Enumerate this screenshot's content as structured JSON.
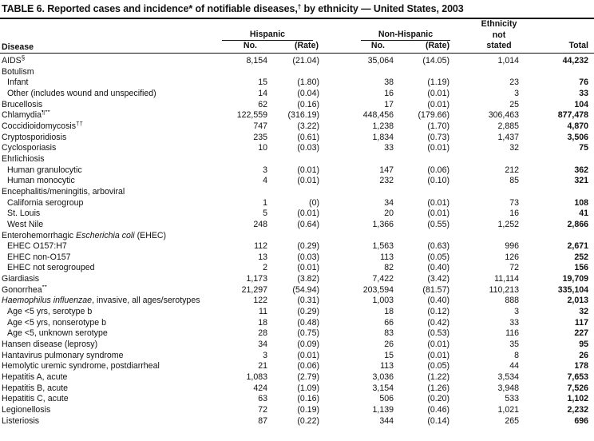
{
  "title": {
    "parts": [
      {
        "t": "TABLE 6. Reported cases and incidence* of notifiable diseases,"
      },
      {
        "t": "†",
        "sup": true
      },
      {
        "t": " by ethnicity — United States, 2003"
      }
    ]
  },
  "table": {
    "header": {
      "disease": "Disease",
      "hispanic": "Hispanic",
      "non_hispanic": "Non-Hispanic",
      "no": "No.",
      "rate": "(Rate)",
      "ethnicity_line1": "Ethnicity",
      "ethnicity_line2": "not",
      "ethnicity_line3": "stated",
      "total": "Total"
    },
    "rows": [
      {
        "label": [
          {
            "t": "AIDS"
          },
          {
            "t": "§",
            "sup": true
          }
        ],
        "indent": false,
        "c": [
          "8,154",
          "(21.04)",
          "35,064",
          "(14.05)",
          "1,014",
          "44,232"
        ]
      },
      {
        "label": [
          {
            "t": "Botulism"
          }
        ],
        "indent": false,
        "c": []
      },
      {
        "label": [
          {
            "t": "Infant"
          }
        ],
        "indent": true,
        "c": [
          "15",
          "(1.80)",
          "38",
          "(1.19)",
          "23",
          "76"
        ]
      },
      {
        "label": [
          {
            "t": "Other (includes wound and unspecified)"
          }
        ],
        "indent": true,
        "c": [
          "14",
          "(0.04)",
          "16",
          "(0.01)",
          "3",
          "33"
        ]
      },
      {
        "label": [
          {
            "t": "Brucellosis"
          }
        ],
        "indent": false,
        "c": [
          "62",
          "(0.16)",
          "17",
          "(0.01)",
          "25",
          "104"
        ]
      },
      {
        "label": [
          {
            "t": "Chlamydia"
          },
          {
            "t": "¶**",
            "sup": true
          }
        ],
        "indent": false,
        "c": [
          "122,559",
          "(316.19)",
          "448,456",
          "(179.66)",
          "306,463",
          "877,478"
        ]
      },
      {
        "label": [
          {
            "t": "Coccidioidomycosis"
          },
          {
            "t": "††",
            "sup": true
          }
        ],
        "indent": false,
        "c": [
          "747",
          "(3.22)",
          "1,238",
          "(1.70)",
          "2,885",
          "4,870"
        ]
      },
      {
        "label": [
          {
            "t": "Cryptosporidiosis"
          }
        ],
        "indent": false,
        "c": [
          "235",
          "(0.61)",
          "1,834",
          "(0.73)",
          "1,437",
          "3,506"
        ]
      },
      {
        "label": [
          {
            "t": "Cyclosporiasis"
          }
        ],
        "indent": false,
        "c": [
          "10",
          "(0.03)",
          "33",
          "(0.01)",
          "32",
          "75"
        ]
      },
      {
        "label": [
          {
            "t": "Ehrlichiosis"
          }
        ],
        "indent": false,
        "c": []
      },
      {
        "label": [
          {
            "t": "Human granulocytic"
          }
        ],
        "indent": true,
        "c": [
          "3",
          "(0.01)",
          "147",
          "(0.06)",
          "212",
          "362"
        ]
      },
      {
        "label": [
          {
            "t": "Human monocytic"
          }
        ],
        "indent": true,
        "c": [
          "4",
          "(0.01)",
          "232",
          "(0.10)",
          "85",
          "321"
        ]
      },
      {
        "label": [
          {
            "t": "Encephalitis/meningitis, arboviral"
          }
        ],
        "indent": false,
        "c": []
      },
      {
        "label": [
          {
            "t": "California serogroup"
          }
        ],
        "indent": true,
        "c": [
          "1",
          "(0)",
          "34",
          "(0.01)",
          "73",
          "108"
        ]
      },
      {
        "label": [
          {
            "t": "St. Louis"
          }
        ],
        "indent": true,
        "c": [
          "5",
          "(0.01)",
          "20",
          "(0.01)",
          "16",
          "41"
        ]
      },
      {
        "label": [
          {
            "t": "West Nile"
          }
        ],
        "indent": true,
        "c": [
          "248",
          "(0.64)",
          "1,366",
          "(0.55)",
          "1,252",
          "2,866"
        ]
      },
      {
        "label": [
          {
            "t": "Enterohemorrhagic "
          },
          {
            "t": "Escherichia coli",
            "it": true
          },
          {
            "t": " (EHEC)"
          }
        ],
        "indent": false,
        "c": []
      },
      {
        "label": [
          {
            "t": "EHEC O157:H7"
          }
        ],
        "indent": true,
        "c": [
          "112",
          "(0.29)",
          "1,563",
          "(0.63)",
          "996",
          "2,671"
        ]
      },
      {
        "label": [
          {
            "t": "EHEC non-O157"
          }
        ],
        "indent": true,
        "c": [
          "13",
          "(0.03)",
          "113",
          "(0.05)",
          "126",
          "252"
        ]
      },
      {
        "label": [
          {
            "t": "EHEC not serogrouped"
          }
        ],
        "indent": true,
        "c": [
          "2",
          "(0.01)",
          "82",
          "(0.40)",
          "72",
          "156"
        ]
      },
      {
        "label": [
          {
            "t": "Giardiasis"
          }
        ],
        "indent": false,
        "c": [
          "1,173",
          "(3.82)",
          "7,422",
          "(3.42)",
          "11,114",
          "19,709"
        ]
      },
      {
        "label": [
          {
            "t": "Gonorrhea"
          },
          {
            "t": "**",
            "sup": true
          }
        ],
        "indent": false,
        "c": [
          "21,297",
          "(54.94)",
          "203,594",
          "(81.57)",
          "110,213",
          "335,104"
        ]
      },
      {
        "label": [
          {
            "t": "Haemophilus influenzae",
            "it": true
          },
          {
            "t": ", invasive, all ages/serotypes"
          }
        ],
        "indent": false,
        "c": [
          "122",
          "(0.31)",
          "1,003",
          "(0.40)",
          "888",
          "2,013"
        ]
      },
      {
        "label": [
          {
            "t": "Age <5 yrs, serotype b"
          }
        ],
        "indent": true,
        "c": [
          "11",
          "(0.29)",
          "18",
          "(0.12)",
          "3",
          "32"
        ]
      },
      {
        "label": [
          {
            "t": "Age <5 yrs, nonserotype b"
          }
        ],
        "indent": true,
        "c": [
          "18",
          "(0.48)",
          "66",
          "(0.42)",
          "33",
          "117"
        ]
      },
      {
        "label": [
          {
            "t": "Age <5, unknown serotype"
          }
        ],
        "indent": true,
        "c": [
          "28",
          "(0.75)",
          "83",
          "(0.53)",
          "116",
          "227"
        ]
      },
      {
        "label": [
          {
            "t": "Hansen disease (leprosy)"
          }
        ],
        "indent": false,
        "c": [
          "34",
          "(0.09)",
          "26",
          "(0.01)",
          "35",
          "95"
        ]
      },
      {
        "label": [
          {
            "t": "Hantavirus pulmonary syndrome"
          }
        ],
        "indent": false,
        "c": [
          "3",
          "(0.01)",
          "15",
          "(0.01)",
          "8",
          "26"
        ]
      },
      {
        "label": [
          {
            "t": "Hemolytic uremic syndrome, postdiarrheal"
          }
        ],
        "indent": false,
        "c": [
          "21",
          "(0.06)",
          "113",
          "(0.05)",
          "44",
          "178"
        ]
      },
      {
        "label": [
          {
            "t": "Hepatitis A, acute"
          }
        ],
        "indent": false,
        "c": [
          "1,083",
          "(2.79)",
          "3,036",
          "(1.22)",
          "3,534",
          "7,653"
        ]
      },
      {
        "label": [
          {
            "t": "Hepatitis B, acute"
          }
        ],
        "indent": false,
        "c": [
          "424",
          "(1.09)",
          "3,154",
          "(1.26)",
          "3,948",
          "7,526"
        ]
      },
      {
        "label": [
          {
            "t": "Hepatitis C, acute"
          }
        ],
        "indent": false,
        "c": [
          "63",
          "(0.16)",
          "506",
          "(0.20)",
          "533",
          "1,102"
        ]
      },
      {
        "label": [
          {
            "t": "Legionellosis"
          }
        ],
        "indent": false,
        "c": [
          "72",
          "(0.19)",
          "1,139",
          "(0.46)",
          "1,021",
          "2,232"
        ]
      },
      {
        "label": [
          {
            "t": "Listeriosis"
          }
        ],
        "indent": false,
        "c": [
          "87",
          "(0.22)",
          "344",
          "(0.14)",
          "265",
          "696"
        ]
      }
    ]
  }
}
